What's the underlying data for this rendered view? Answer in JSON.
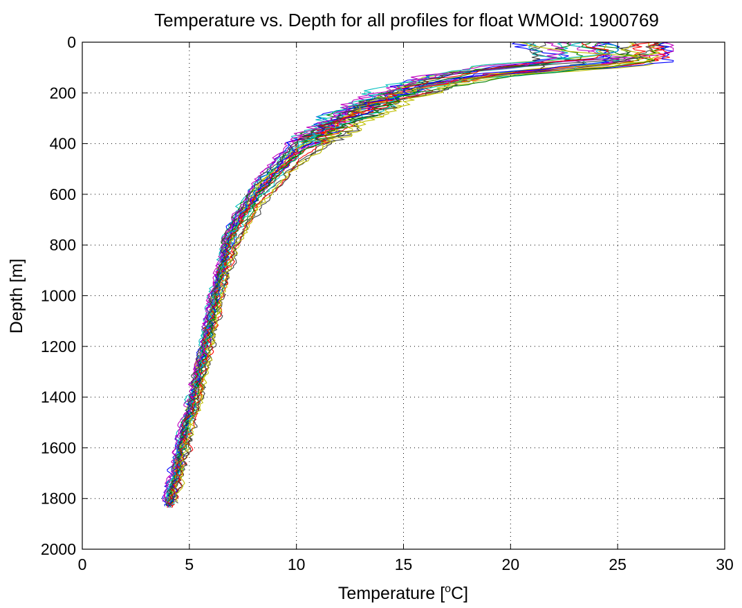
{
  "chart_data": {
    "type": "line",
    "title": "Temperature vs. Depth for all profiles for float WMOId: 1900769",
    "xlabel": {
      "prefix": "Temperature [",
      "superscript": "o",
      "suffix": "C]"
    },
    "ylabel": "Depth [m]",
    "xlim": [
      0,
      30
    ],
    "ylim": [
      0,
      2000
    ],
    "y_reversed": true,
    "grid": true,
    "legend": "none",
    "x_ticks": [
      "0",
      "5",
      "10",
      "15",
      "20",
      "25",
      "30"
    ],
    "y_ticks": [
      "0",
      "200",
      "400",
      "600",
      "800",
      "1000",
      "1200",
      "1400",
      "1600",
      "1800",
      "2000"
    ],
    "series_count": 28,
    "profile_colors": [
      "#0000ff",
      "#008000",
      "#ff0000",
      "#00bfbf",
      "#bf00bf",
      "#bfbf00",
      "#404040"
    ],
    "representative_profile": {
      "temperature": [
        27.3,
        27.2,
        26.5,
        24.5,
        21.5,
        18.5,
        16.5,
        15.0,
        13.8,
        12.6,
        11.6,
        10.7,
        9.9,
        9.2,
        8.5,
        7.9,
        7.4,
        7.0,
        6.8,
        6.55,
        6.3,
        6.05,
        5.8,
        5.55,
        5.3,
        5.05,
        4.8,
        4.6,
        4.4,
        4.25,
        4.1
      ],
      "depth": [
        5,
        30,
        50,
        70,
        95,
        125,
        160,
        200,
        245,
        295,
        345,
        400,
        455,
        515,
        580,
        645,
        715,
        785,
        845,
        920,
        1000,
        1100,
        1200,
        1300,
        1400,
        1480,
        1560,
        1640,
        1710,
        1780,
        1830
      ]
    }
  }
}
